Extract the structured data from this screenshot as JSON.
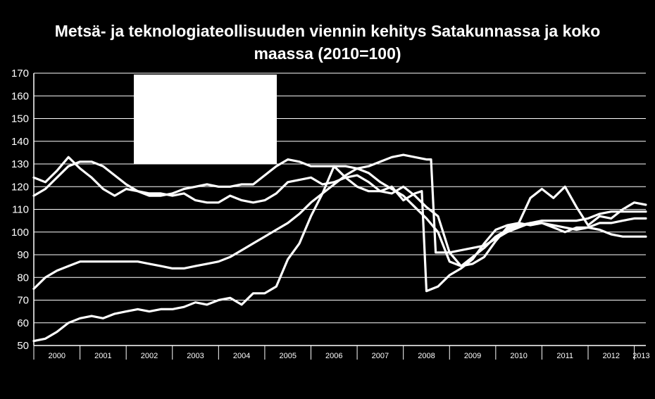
{
  "chart_data": {
    "type": "line",
    "title_line1": "Metsä- ja teknologiateollisuuden viennin kehitys Satakunnassa ja koko",
    "title_line2": "maassa (2010=100)",
    "ylim": [
      50,
      170
    ],
    "yticks": [
      "50",
      "60",
      "70",
      "80",
      "90",
      "100",
      "110",
      "120",
      "130",
      "140",
      "150",
      "160",
      "170"
    ],
    "xticks": [
      "2000",
      "2001",
      "2002",
      "2003",
      "2004",
      "2005",
      "2006",
      "2007",
      "2008",
      "2009",
      "2010",
      "2011",
      "2012",
      "2013"
    ],
    "xlim": [
      2000.0,
      2013.25
    ],
    "grid": "horizontal",
    "legend": "top-left box (blank)",
    "series": [
      {
        "x": [
          2000.0,
          2000.25,
          2000.5,
          2000.75,
          2001.0,
          2001.25,
          2001.5,
          2001.75,
          2002.0,
          2002.25,
          2002.5,
          2002.75,
          2003.0,
          2003.25,
          2003.5,
          2003.75,
          2004.0,
          2004.25,
          2004.5,
          2004.75,
          2005.0,
          2005.25,
          2005.5,
          2005.75,
          2006.0,
          2006.25,
          2006.5,
          2006.75,
          2007.0,
          2007.25,
          2007.5,
          2007.75,
          2008.0,
          2008.25,
          2008.5,
          2008.6,
          2008.7,
          2009.0,
          2009.25,
          2009.5,
          2009.75,
          2010.0,
          2010.25,
          2010.5,
          2010.75,
          2011.0,
          2011.25,
          2011.5,
          2011.75,
          2012.0,
          2012.25,
          2012.5,
          2012.75,
          2013.0,
          2013.25
        ],
        "values": [
          116,
          119,
          124,
          129,
          131,
          131,
          129,
          125,
          121,
          118,
          116,
          116,
          117,
          119,
          120,
          121,
          120,
          120,
          121,
          121,
          125,
          129,
          132,
          131,
          129,
          129,
          129,
          129,
          128,
          129,
          131,
          133,
          134,
          133,
          132,
          132,
          91,
          91,
          92,
          93,
          94,
          97,
          100,
          102,
          104,
          105,
          105,
          105,
          105,
          106,
          108,
          109,
          109,
          109,
          109
        ]
      },
      {
        "x": [
          2000.0,
          2000.25,
          2000.5,
          2000.75,
          2001.0,
          2001.25,
          2001.5,
          2001.75,
          2002.0,
          2002.25,
          2002.5,
          2002.75,
          2003.0,
          2003.25,
          2003.5,
          2003.75,
          2004.0,
          2004.25,
          2004.5,
          2004.75,
          2005.0,
          2005.25,
          2005.5,
          2005.75,
          2006.0,
          2006.25,
          2006.5,
          2006.75,
          2007.0,
          2007.25,
          2007.5,
          2007.75,
          2008.0,
          2008.25,
          2008.5,
          2008.75,
          2009.0,
          2009.25,
          2009.5,
          2009.75,
          2010.0,
          2010.25,
          2010.5,
          2010.75,
          2011.0,
          2011.25,
          2011.5,
          2011.75,
          2012.0,
          2012.25,
          2012.5,
          2012.75,
          2013.0,
          2013.25
        ],
        "values": [
          124,
          122,
          127,
          133,
          128,
          124,
          119,
          116,
          119,
          118,
          117,
          117,
          116,
          117,
          114,
          113,
          113,
          116,
          114,
          113,
          114,
          117,
          122,
          123,
          124,
          121,
          122,
          124,
          125,
          122,
          118,
          117,
          120,
          116,
          111,
          107,
          91,
          85,
          86,
          89,
          96,
          102,
          104,
          115,
          119,
          115,
          120,
          111,
          103,
          107,
          106,
          110,
          113,
          112
        ]
      },
      {
        "x": [
          2000.0,
          2000.25,
          2000.5,
          2000.75,
          2001.0,
          2001.25,
          2001.5,
          2001.75,
          2002.0,
          2002.25,
          2002.5,
          2002.75,
          2003.0,
          2003.25,
          2003.5,
          2003.75,
          2004.0,
          2004.25,
          2004.5,
          2004.75,
          2005.0,
          2005.25,
          2005.5,
          2005.75,
          2006.0,
          2006.25,
          2006.5,
          2006.75,
          2007.0,
          2007.25,
          2007.5,
          2007.75,
          2008.0,
          2008.25,
          2008.5,
          2008.75,
          2009.0,
          2009.25,
          2009.5,
          2009.75,
          2010.0,
          2010.25,
          2010.5,
          2010.75,
          2011.0,
          2011.25,
          2011.5,
          2011.75,
          2012.0,
          2012.25,
          2012.5,
          2012.75,
          2013.0,
          2013.25
        ],
        "values": [
          75,
          80,
          83,
          85,
          87,
          87,
          87,
          87,
          87,
          87,
          86,
          85,
          84,
          84,
          85,
          86,
          87,
          89,
          92,
          95,
          98,
          101,
          104,
          108,
          113,
          117,
          121,
          125,
          128,
          126,
          122,
          119,
          116,
          111,
          106,
          100,
          87,
          85,
          89,
          93,
          98,
          101,
          103,
          104,
          104,
          103,
          102,
          101,
          102,
          104,
          104,
          105,
          106,
          106
        ]
      },
      {
        "x": [
          2000.0,
          2000.25,
          2000.5,
          2000.75,
          2001.0,
          2001.25,
          2001.5,
          2001.75,
          2002.0,
          2002.25,
          2002.5,
          2002.75,
          2003.0,
          2003.25,
          2003.5,
          2003.75,
          2004.0,
          2004.25,
          2004.5,
          2004.75,
          2005.0,
          2005.25,
          2005.5,
          2005.75,
          2006.0,
          2006.25,
          2006.5,
          2006.75,
          2007.0,
          2007.25,
          2007.5,
          2007.75,
          2008.0,
          2008.25,
          2008.4,
          2008.5,
          2008.75,
          2009.0,
          2009.25,
          2009.5,
          2009.75,
          2010.0,
          2010.25,
          2010.5,
          2010.75,
          2011.0,
          2011.25,
          2011.5,
          2011.75,
          2012.0,
          2012.25,
          2012.5,
          2012.75,
          2013.0,
          2013.25
        ],
        "values": [
          52,
          53,
          56,
          60,
          62,
          63,
          62,
          64,
          65,
          66,
          65,
          66,
          66,
          67,
          69,
          68,
          70,
          71,
          68,
          73,
          73,
          76,
          88,
          95,
          107,
          117,
          129,
          124,
          120,
          118,
          118,
          120,
          114,
          117,
          118,
          74,
          76,
          81,
          84,
          88,
          95,
          101,
          103,
          104,
          103,
          104,
          102,
          100,
          102,
          102,
          101,
          99,
          98,
          98,
          98
        ]
      }
    ]
  }
}
